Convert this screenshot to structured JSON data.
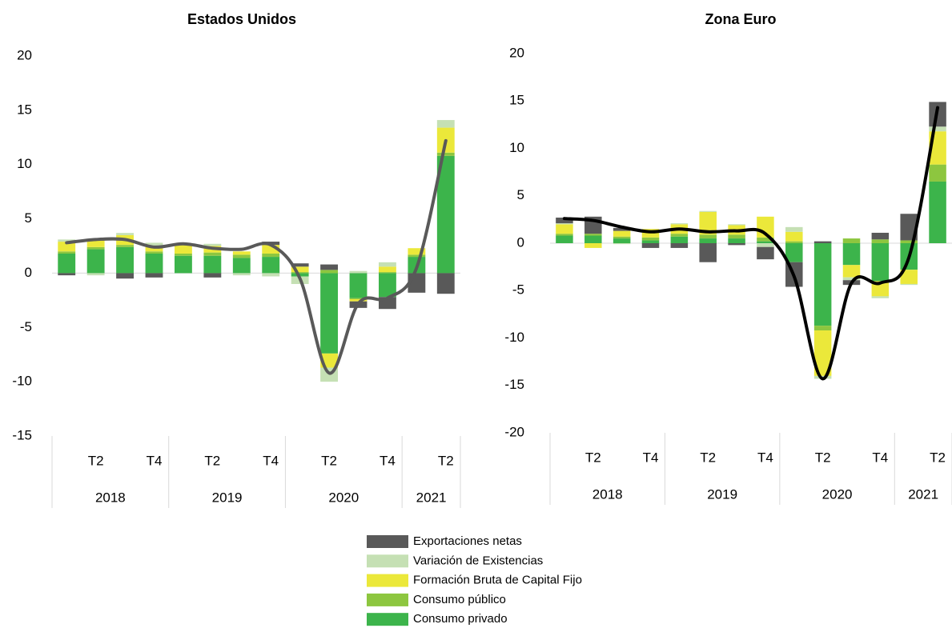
{
  "chart_data": [
    {
      "type": "stacked_bar_line",
      "title": "Estados Unidos",
      "categories": [
        null,
        "T2",
        null,
        "T4",
        null,
        "T2",
        null,
        "T4",
        null,
        "T2",
        null,
        "T4",
        null,
        "T2"
      ],
      "groups": [
        {
          "name": "2018",
          "count": 4
        },
        {
          "name": "2019",
          "count": 4
        },
        {
          "name": "2020",
          "count": 4
        },
        {
          "name": "2021",
          "count": 2
        }
      ],
      "ylim": [
        -15,
        20
      ],
      "yticks": [
        -15,
        -10,
        -5,
        0,
        5,
        10,
        15,
        20
      ],
      "series": [
        {
          "name": "Consumo privado",
          "color": "#3cb44b",
          "values": [
            1.8,
            2.2,
            2.4,
            1.8,
            1.6,
            1.6,
            1.4,
            1.5,
            -0.3,
            -7.4,
            -2.3,
            -2.2,
            1.5,
            10.8
          ]
        },
        {
          "name": "Consumo público",
          "color": "#8dc63f",
          "values": [
            0.2,
            0.2,
            0.2,
            0.2,
            0.2,
            0.3,
            0.3,
            0.3,
            0.1,
            0.3,
            -0.1,
            0.1,
            0.2,
            0.3
          ]
        },
        {
          "name": "Formación Bruta de Capital Fijo",
          "color": "#ebe83a",
          "values": [
            0.9,
            0.7,
            0.9,
            0.4,
            0.9,
            0.6,
            0.3,
            0.8,
            0.5,
            -1.3,
            -0.2,
            0.5,
            0.6,
            2.3
          ]
        },
        {
          "name": "Variación de Existencias",
          "color": "#c5e0b4",
          "values": [
            0.2,
            -0.2,
            0.2,
            0.4,
            0,
            0.2,
            -0.2,
            -0.3,
            -0.7,
            -1.3,
            0.2,
            0.4,
            0,
            0.7
          ]
        },
        {
          "name": "Exportaciones netas",
          "color": "#595959",
          "values": [
            -0.2,
            0,
            -0.5,
            -0.4,
            0,
            -0.4,
            0,
            0.3,
            0.3,
            0.5,
            -0.6,
            -1.1,
            -1.8,
            -1.9
          ]
        }
      ],
      "line": {
        "color": "#595959",
        "values": [
          2.8,
          3.1,
          3.1,
          2.4,
          2.7,
          2.3,
          2.2,
          2.6,
          -0.5,
          -9.2,
          -2.8,
          -2.3,
          0.5,
          12.2
        ]
      }
    },
    {
      "type": "stacked_bar_line",
      "title": "Zona Euro",
      "categories": [
        null,
        "T2",
        null,
        "T4",
        null,
        "T2",
        null,
        "T4",
        null,
        "T2",
        null,
        "T4",
        null,
        "T2"
      ],
      "groups": [
        {
          "name": "2018",
          "count": 4
        },
        {
          "name": "2019",
          "count": 4
        },
        {
          "name": "2020",
          "count": 4
        },
        {
          "name": "2021",
          "count": 2
        }
      ],
      "ylim": [
        -20,
        20
      ],
      "yticks": [
        -20,
        -15,
        -10,
        -5,
        0,
        5,
        10,
        15,
        20
      ],
      "series": [
        {
          "name": "Consumo privado",
          "color": "#3cb44b",
          "values": [
            0.8,
            0.8,
            0.5,
            0.3,
            0.7,
            0.5,
            0.5,
            0.2,
            -2.0,
            -8.7,
            -2.3,
            -4.0,
            -2.8,
            6.5
          ]
        },
        {
          "name": "Consumo público",
          "color": "#8dc63f",
          "values": [
            0.2,
            0.2,
            0.2,
            0.3,
            0.3,
            0.4,
            0.4,
            0.4,
            0.2,
            -0.5,
            0.5,
            0.4,
            0.3,
            1.8
          ]
        },
        {
          "name": "Formación Bruta de Capital Fijo",
          "color": "#ebe83a",
          "values": [
            1.0,
            -0.5,
            0.6,
            0.9,
            1.0,
            2.4,
            1.0,
            2.2,
            1.0,
            -4.8,
            -1.3,
            -1.6,
            -1.5,
            3.5
          ]
        },
        {
          "name": "Variación de Existencias",
          "color": "#c5e0b4",
          "values": [
            0.1,
            0,
            -0.1,
            0,
            0.1,
            0.1,
            0.1,
            -0.4,
            0.5,
            -0.3,
            -0.3,
            -0.2,
            -0.1,
            0.5
          ]
        },
        {
          "name": "Exportaciones netas",
          "color": "#595959",
          "values": [
            0.6,
            1.8,
            0.3,
            -0.5,
            -0.5,
            -2.0,
            -0.2,
            -1.3,
            -2.6,
            0.2,
            -0.5,
            0.7,
            2.8,
            2.6
          ]
        }
      ],
      "line": {
        "color": "#000000",
        "values": [
          2.6,
          2.4,
          1.7,
          1.2,
          1.5,
          1.2,
          1.3,
          1.0,
          -3.5,
          -14.3,
          -4.2,
          -4.2,
          -1.5,
          14.3
        ]
      }
    }
  ]
}
